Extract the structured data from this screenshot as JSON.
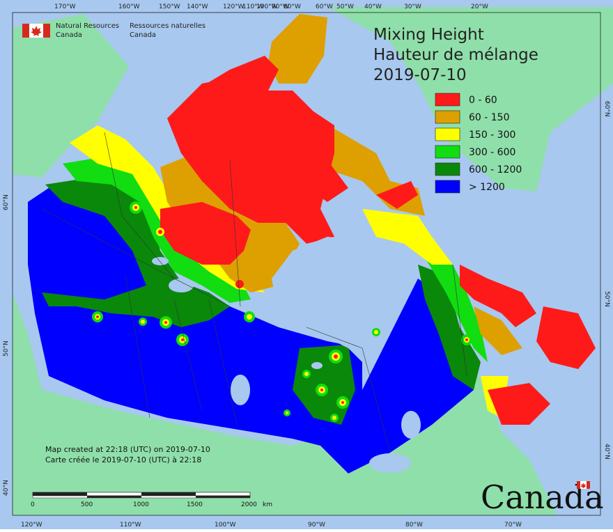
{
  "agency": {
    "name_en_line1": "Natural Resources",
    "name_en_line2": "Canada",
    "name_fr_line1": "Ressources naturelles",
    "name_fr_line2": "Canada"
  },
  "title": {
    "line1": "Mixing Height",
    "line2": "Hauteur de mélange",
    "line3": "2019-07-10"
  },
  "legend": {
    "items": [
      {
        "label": "0 - 60",
        "color": "#ff1a1a"
      },
      {
        "label": "60 - 150",
        "color": "#dda000"
      },
      {
        "label": "150 - 300",
        "color": "#ffff00"
      },
      {
        "label": "300 - 600",
        "color": "#11dd11"
      },
      {
        "label": "600 - 1200",
        "color": "#0a880a"
      },
      {
        "label": "> 1200",
        "color": "#0000ff"
      }
    ]
  },
  "notes": {
    "created_en": "Map created at 22:18 (UTC) on 2019-07-10",
    "created_fr": "Carte créée le 2019-07-10 (UTC) à 22:18"
  },
  "scale_bar": {
    "labels": [
      "0",
      "500",
      "1000",
      "1500",
      "2000"
    ],
    "unit": "km"
  },
  "graticule": {
    "top": [
      "170°W",
      "160°W",
      "150°W",
      "140°W",
      "120°W",
      "110°W",
      "100°W",
      "90°W",
      "80°W",
      "60°W",
      "50°W",
      "40°W",
      "30°W",
      "20°W"
    ],
    "bottom": [
      "120°W",
      "110°W",
      "100°W",
      "90°W",
      "80°W",
      "70°W"
    ],
    "left": [
      "60°N",
      "50°N",
      "40°N"
    ],
    "right": [
      "60°N",
      "50°N",
      "40°N"
    ]
  },
  "wordmark": "Canada",
  "colors": {
    "ocean": "#a8c8ef",
    "land": "#8fdfaa"
  }
}
